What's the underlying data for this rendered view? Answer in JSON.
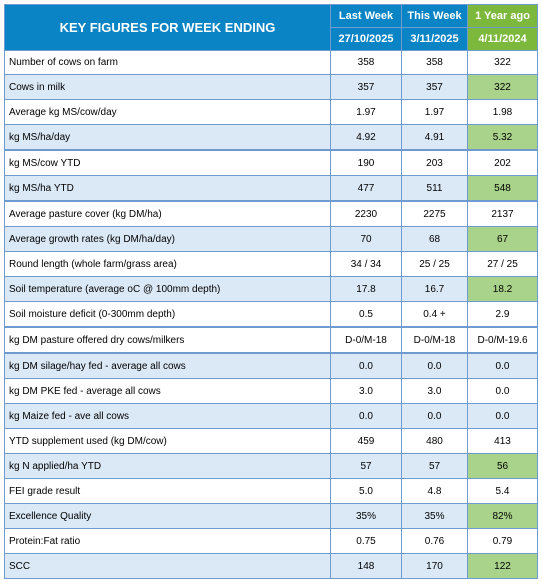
{
  "header": {
    "title": "KEY FIGURES FOR WEEK ENDING",
    "col_last_week": "Last Week",
    "col_this_week": "This Week",
    "col_year_ago": "1 Year ago",
    "date_last_week": "27/10/2025",
    "date_this_week": "3/11/2025",
    "date_year_ago": "4/11/2024"
  },
  "colors": {
    "header_blue": "#0b84c6",
    "header_green": "#7cb83b",
    "row_alt_blue": "#dbe9f7",
    "row_alt_green": "#a9d38a",
    "grid_line": "#6f9bd1"
  },
  "rows": [
    {
      "label": "Number of cows on farm",
      "last": "358",
      "this": "358",
      "year": "322"
    },
    {
      "label": "Cows in milk",
      "last": "357",
      "this": "357",
      "year": "322"
    },
    {
      "label": "Average kg MS/cow/day",
      "last": "1.97",
      "this": "1.97",
      "year": "1.98"
    },
    {
      "label": "kg MS/ha/day",
      "last": "4.92",
      "this": "4.91",
      "year": "5.32"
    },
    {
      "label": "kg MS/cow YTD",
      "last": "190",
      "this": "203",
      "year": "202"
    },
    {
      "label": "kg MS/ha YTD",
      "last": "477",
      "this": "511",
      "year": "548"
    },
    {
      "label": "Average pasture cover (kg DM/ha)",
      "last": "2230",
      "this": "2275",
      "year": "2137"
    },
    {
      "label": "Average growth rates (kg DM/ha/day)",
      "last": "70",
      "this": "68",
      "year": "67"
    },
    {
      "label": "Round length (whole farm/grass area)",
      "last": "34 / 34",
      "this": "25 / 25",
      "year": "27 / 25"
    },
    {
      "label": "Soil temperature (average oC  @ 100mm depth)",
      "last": "17.8",
      "this": "16.7",
      "year": "18.2"
    },
    {
      "label": "Soil moisture deficit (0-300mm depth)",
      "last": "0.5",
      "this": "0.4 +",
      "year": "2.9"
    },
    {
      "label": "kg DM pasture offered dry cows/milkers",
      "last": "D-0/M-18",
      "this": "D-0/M-18",
      "year": "D-0/M-19.6"
    },
    {
      "label": "kg DM silage/hay fed - average all cows",
      "last": "0.0",
      "this": "0.0",
      "year": "0.0"
    },
    {
      "label": "kg DM PKE fed - average all cows",
      "last": "3.0",
      "this": "3.0",
      "year": "0.0"
    },
    {
      "label": "kg Maize fed - ave all cows",
      "last": "0.0",
      "this": "0.0",
      "year": "0.0"
    },
    {
      "label": "YTD supplement used (kg DM/cow)",
      "last": "459",
      "this": "480",
      "year": "413"
    },
    {
      "label": "kg N applied/ha YTD",
      "last": "57",
      "this": "57",
      "year": "56"
    },
    {
      "label": "FEI grade result",
      "last": "5.0",
      "this": "4.8",
      "year": "5.4"
    },
    {
      "label": "Excellence Quality",
      "last": "35%",
      "this": "35%",
      "year": "82%"
    },
    {
      "label": "Protein:Fat ratio",
      "last": "0.75",
      "this": "0.76",
      "year": "0.79"
    },
    {
      "label": "SCC",
      "last": "148",
      "this": "170",
      "year": "122"
    }
  ]
}
